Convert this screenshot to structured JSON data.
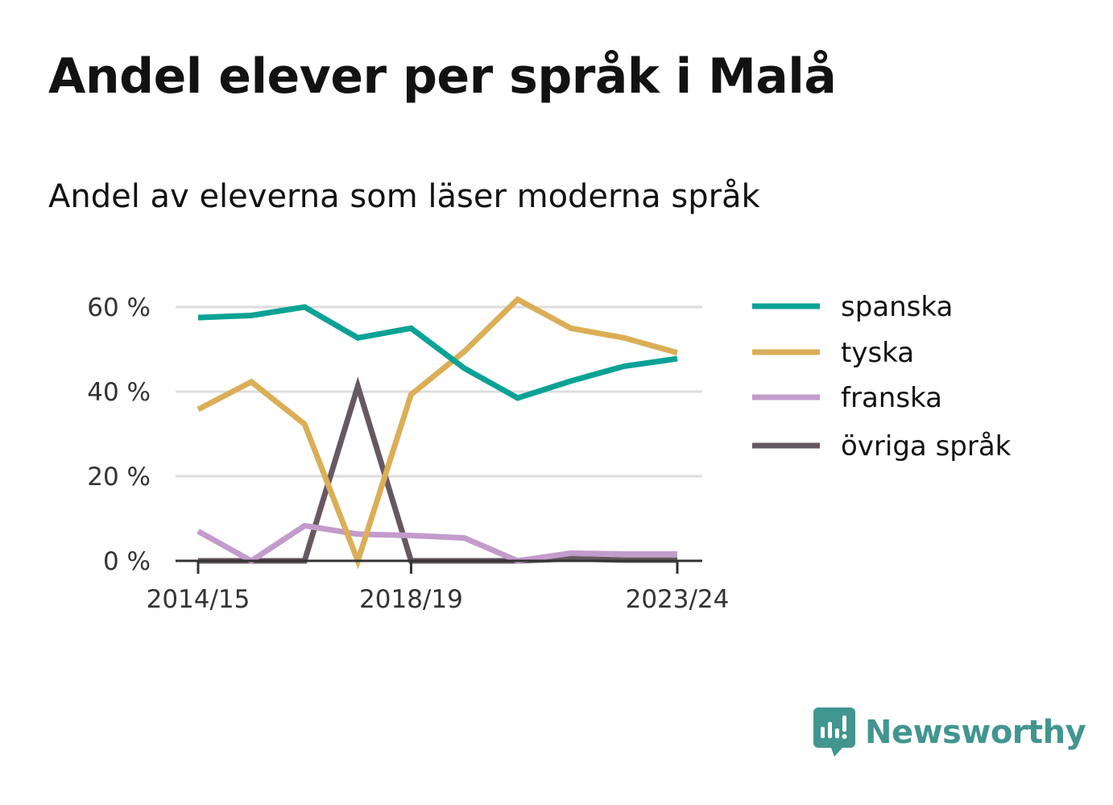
{
  "title": "Andel elever per språk i Malå",
  "subtitle": "Andel av eleverna som läser moderna språk",
  "brand": {
    "name": "Newsworthy",
    "color": "#41968f",
    "icon": "newsworthy-logo-icon"
  },
  "chart_data": {
    "type": "line",
    "x": [
      "2014/15",
      "2015/16",
      "2016/17",
      "2017/18",
      "2018/19",
      "2019/20",
      "2020/21",
      "2021/22",
      "2022/23",
      "2023/24"
    ],
    "x_tick_labels": [
      "2014/15",
      "2018/19",
      "2023/24"
    ],
    "y_ticks": [
      0,
      20,
      40,
      60
    ],
    "y_tick_labels": [
      "0 %",
      "20 %",
      "40 %",
      "60 %"
    ],
    "ylim": [
      0,
      62
    ],
    "grid": true,
    "legend_position": "right",
    "series": [
      {
        "name": "spanska",
        "color": "#0aa296",
        "values": [
          57.5,
          58,
          60,
          52.7,
          55,
          45.5,
          38.5,
          42.5,
          46,
          47.8
        ]
      },
      {
        "name": "tyska",
        "color": "#dbae57",
        "values": [
          35.8,
          42.3,
          32.3,
          0,
          39.3,
          49.5,
          61.8,
          55,
          52.7,
          49.2
        ]
      },
      {
        "name": "franska",
        "color": "#c39bcc",
        "values": [
          7,
          0,
          8.3,
          6.3,
          6,
          5.4,
          0,
          1.8,
          1.6,
          1.6
        ]
      },
      {
        "name": "övriga språk",
        "color": "#665861",
        "values": [
          0,
          0,
          0,
          41.3,
          0,
          0,
          0,
          0.5,
          0.2,
          0.2
        ]
      }
    ]
  }
}
